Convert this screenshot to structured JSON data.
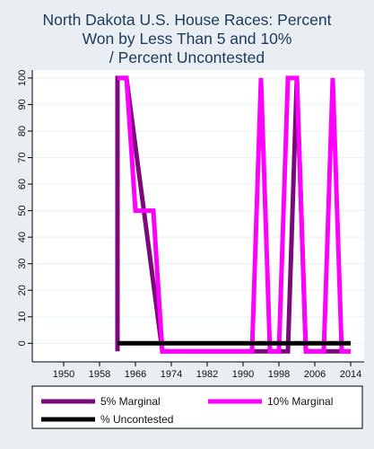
{
  "chart_data": {
    "type": "line",
    "title_lines": [
      "North Dakota U.S. House Races: Percent",
      "Won by Less Than 5 and 10%",
      "/ Percent Uncontested"
    ],
    "xlabel": "",
    "ylabel": "",
    "xlim": [
      1943,
      2017
    ],
    "ylim": [
      -7,
      103
    ],
    "x_ticks": [
      1950,
      1958,
      1966,
      1974,
      1982,
      1990,
      1998,
      2006,
      2014
    ],
    "y_ticks": [
      0,
      10,
      20,
      30,
      40,
      50,
      60,
      70,
      80,
      90,
      100
    ],
    "grid": true,
    "legend_position": "bottom",
    "series": [
      {
        "name": "5% Marginal",
        "color": "#7a0a7a",
        "x": [
          1962,
          1962,
          1964,
          1972,
          2000,
          2002,
          2004,
          2014
        ],
        "y": [
          -3,
          100,
          100,
          -3,
          -3,
          100,
          -3,
          -3
        ]
      },
      {
        "name": "10% Marginal",
        "color": "#ff00ff",
        "x": [
          1962,
          1964,
          1966,
          1968,
          1970,
          1972,
          1990,
          1992,
          1994,
          1996,
          1998,
          2000,
          2002,
          2004,
          2006,
          2008,
          2010,
          2012,
          2014
        ],
        "y": [
          100,
          100,
          50,
          50,
          50,
          -3,
          -3,
          -3,
          100,
          -3,
          -3,
          100,
          100,
          -3,
          -3,
          -3,
          100,
          -3,
          -3
        ]
      },
      {
        "name": "% Uncontested",
        "color": "#000000",
        "x": [
          1962,
          2014
        ],
        "y": [
          0,
          0
        ]
      }
    ]
  }
}
